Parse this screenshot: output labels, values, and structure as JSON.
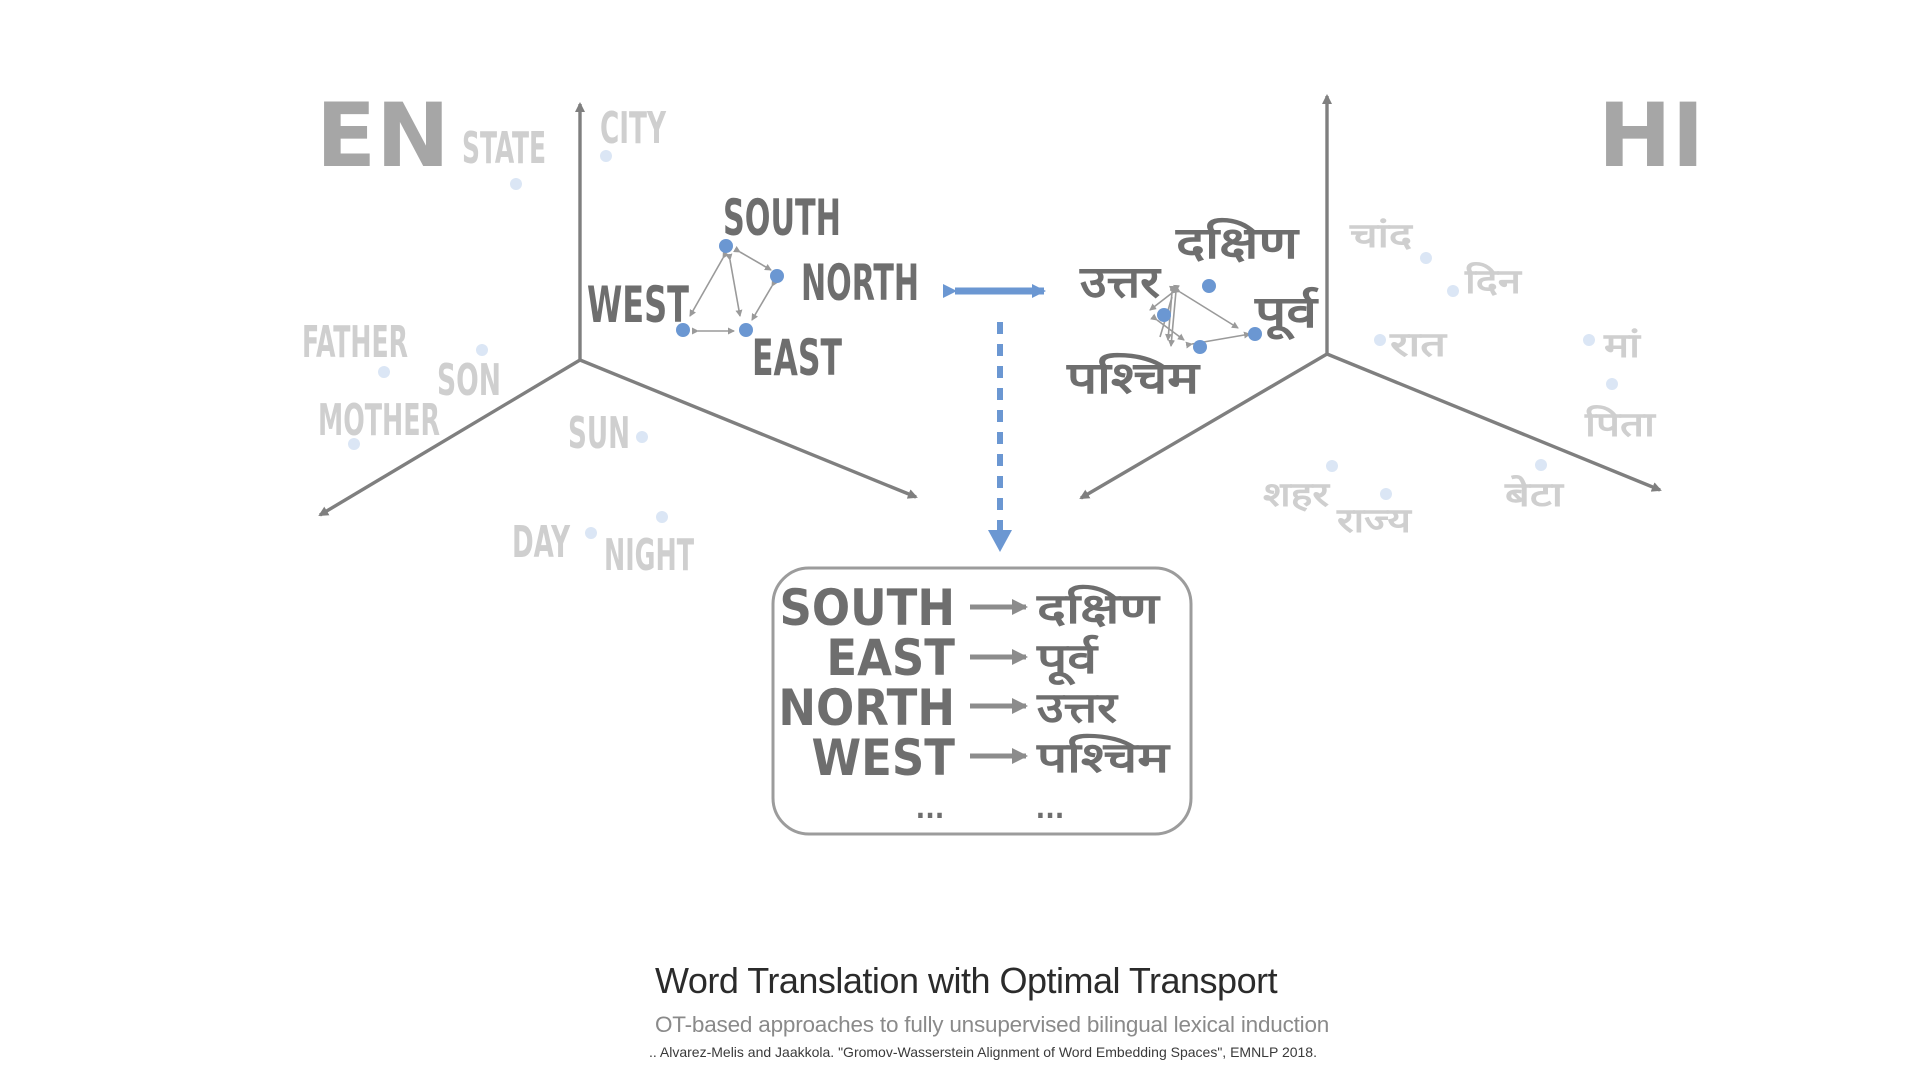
{
  "languages": {
    "left": "EN",
    "right": "HI"
  },
  "en_words": {
    "state": "STATE",
    "city": "CITY",
    "father": "FATHER",
    "son": "SON",
    "mother": "MOTHER",
    "sun": "SUN",
    "day": "DAY",
    "night": "NIGHT",
    "south": "SOUTH",
    "north": "NORTH",
    "west": "WEST",
    "east": "EAST"
  },
  "hi_words": {
    "moon": "चांद",
    "day": "दिन",
    "night": "रात",
    "mother": "मां",
    "father": "पिता",
    "city": "शहर",
    "state": "राज्य",
    "son": "बेटा",
    "south": "दक्षिण",
    "north": "उत्तर",
    "east": "पूर्व",
    "west": "पश्चिम"
  },
  "mapping": [
    {
      "en": "SOUTH",
      "hi": "दक्षिण"
    },
    {
      "en": "EAST",
      "hi": "पूर्व"
    },
    {
      "en": "NORTH",
      "hi": "उत्तर"
    },
    {
      "en": "WEST",
      "hi": "पश्चिम"
    }
  ],
  "mapping_ellipsis": {
    "en": "...",
    "hi": "..."
  },
  "caption": {
    "title": "Word Translation with Optimal Transport",
    "subtitle": "OT-based approaches to fully unsupervised bilingual lexical induction",
    "reference": ".. Alvarez-Melis and Jaakkola. \"Gromov-Wasserstein Alignment of Word Embedding Spaces\", EMNLP 2018."
  },
  "colors": {
    "accent": "#6b97d2",
    "faint_point": "#dbe6f5",
    "strong_text": "#6e6e6e",
    "faint_text": "#cfcfcf",
    "axis": "#7f7f7f"
  }
}
